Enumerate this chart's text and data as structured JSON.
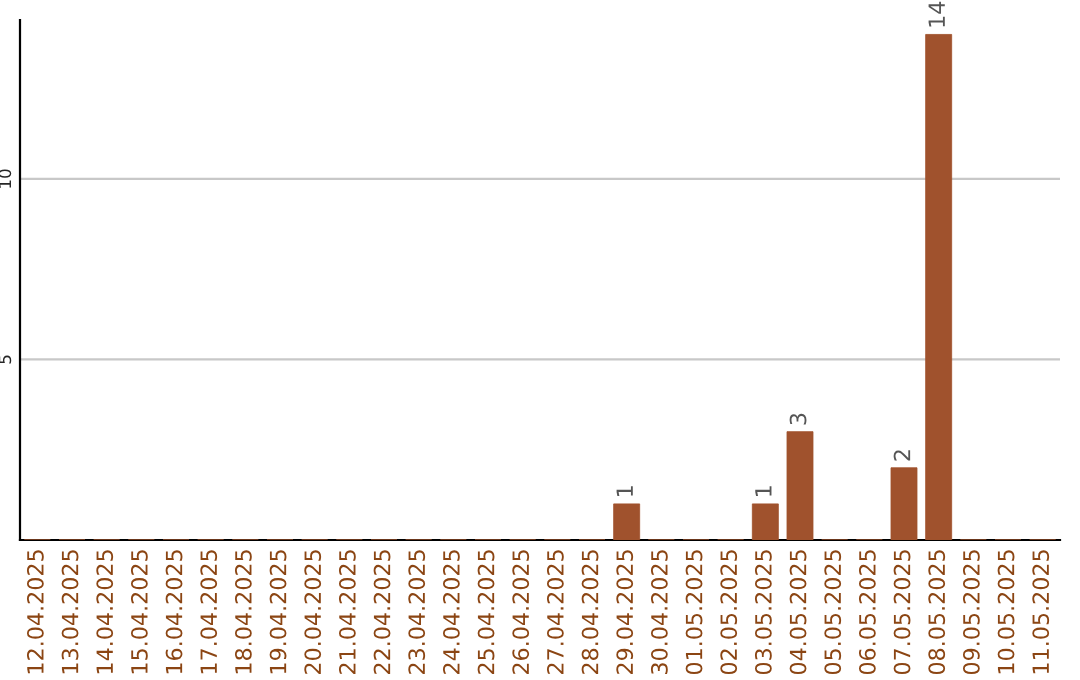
{
  "chart_data": {
    "type": "bar",
    "categories": [
      "12.04.2025",
      "13.04.2025",
      "14.04.2025",
      "15.04.2025",
      "16.04.2025",
      "17.04.2025",
      "18.04.2025",
      "19.04.2025",
      "20.04.2025",
      "21.04.2025",
      "22.04.2025",
      "23.04.2025",
      "24.04.2025",
      "25.04.2025",
      "26.04.2025",
      "27.04.2025",
      "28.04.2025",
      "29.04.2025",
      "30.04.2025",
      "01.05.2025",
      "02.05.2025",
      "03.05.2025",
      "04.05.2025",
      "05.05.2025",
      "06.05.2025",
      "07.05.2025",
      "08.05.2025",
      "09.05.2025",
      "10.05.2025",
      "11.05.2025"
    ],
    "values": [
      0,
      0,
      0,
      0,
      0,
      0,
      0,
      0,
      0,
      0,
      0,
      0,
      0,
      0,
      0,
      0,
      0,
      1,
      0,
      0,
      0,
      1,
      3,
      0,
      0,
      2,
      14,
      0,
      0,
      0
    ],
    "value_labels": [
      null,
      null,
      null,
      null,
      null,
      null,
      null,
      null,
      null,
      null,
      null,
      null,
      null,
      null,
      null,
      null,
      null,
      "1",
      null,
      null,
      null,
      "1",
      "3",
      null,
      null,
      "2",
      "14",
      null,
      null,
      null
    ],
    "color": "#a0522d",
    "ylim": [
      0,
      14.4
    ],
    "yticks": [
      5,
      10
    ],
    "grid": "y"
  }
}
